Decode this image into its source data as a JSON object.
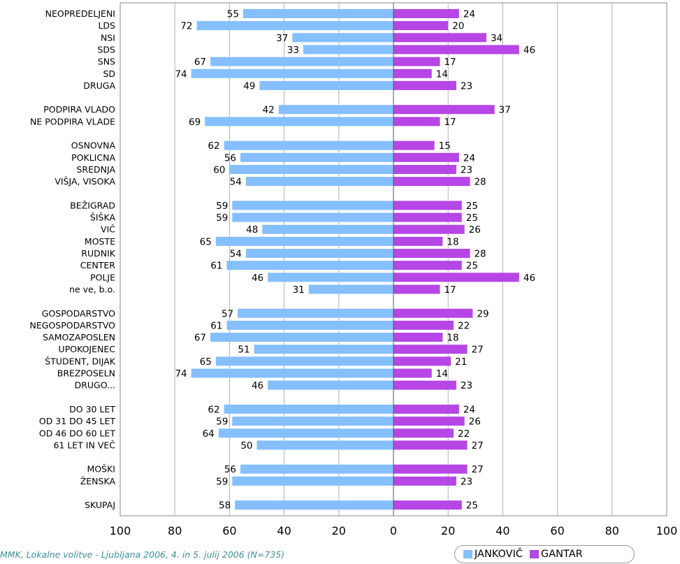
{
  "chart_data": {
    "type": "bar",
    "orientation": "horizontal-butterfly",
    "series": [
      {
        "name": "JANKOVIČ",
        "color": "#85bfff",
        "direction": "left"
      },
      {
        "name": "GANTAR",
        "color": "#b646e6",
        "direction": "right"
      }
    ],
    "groups": [
      {
        "rows": [
          {
            "label": "NEOPREDELJENI",
            "values": [
              55,
              24
            ]
          },
          {
            "label": "LDS",
            "values": [
              72,
              20
            ]
          },
          {
            "label": "NSI",
            "values": [
              37,
              34
            ]
          },
          {
            "label": "SDS",
            "values": [
              33,
              46
            ]
          },
          {
            "label": "SNS",
            "values": [
              67,
              17
            ]
          },
          {
            "label": "SD",
            "values": [
              74,
              14
            ]
          },
          {
            "label": "DRUGA",
            "values": [
              49,
              23
            ]
          }
        ]
      },
      {
        "rows": [
          {
            "label": "PODPIRA VLADO",
            "values": [
              42,
              37
            ]
          },
          {
            "label": "NE PODPIRA VLADE",
            "values": [
              69,
              17
            ]
          }
        ]
      },
      {
        "rows": [
          {
            "label": "OSNOVNA",
            "values": [
              62,
              15
            ]
          },
          {
            "label": "POKLICNA",
            "values": [
              56,
              24
            ]
          },
          {
            "label": "SREDNJA",
            "values": [
              60,
              23
            ]
          },
          {
            "label": "VIŠJA, VISOKA",
            "values": [
              54,
              28
            ]
          }
        ]
      },
      {
        "rows": [
          {
            "label": "BEŽIGRAD",
            "values": [
              59,
              25
            ]
          },
          {
            "label": "ŠIŠKA",
            "values": [
              59,
              25
            ]
          },
          {
            "label": "VIČ",
            "values": [
              48,
              26
            ]
          },
          {
            "label": "MOSTE",
            "values": [
              65,
              18
            ]
          },
          {
            "label": "RUDNIK",
            "values": [
              54,
              28
            ]
          },
          {
            "label": "CENTER",
            "values": [
              61,
              25
            ]
          },
          {
            "label": "POLJE",
            "values": [
              46,
              46
            ]
          },
          {
            "label": "ne ve, b.o.",
            "values": [
              31,
              17
            ]
          }
        ]
      },
      {
        "rows": [
          {
            "label": "GOSPODARSTVO",
            "values": [
              57,
              29
            ]
          },
          {
            "label": "NEGOSPODARSTVO",
            "values": [
              61,
              22
            ]
          },
          {
            "label": "SAMOZAPOSLEN",
            "values": [
              67,
              18
            ]
          },
          {
            "label": "UPOKOJENEC",
            "values": [
              51,
              27
            ]
          },
          {
            "label": "ŠTUDENT, DIJAK",
            "values": [
              65,
              21
            ]
          },
          {
            "label": "BREZPOSELN",
            "values": [
              74,
              14
            ]
          },
          {
            "label": "DRUGO...",
            "values": [
              46,
              23
            ]
          }
        ]
      },
      {
        "rows": [
          {
            "label": "DO 30 LET",
            "values": [
              62,
              24
            ]
          },
          {
            "label": "OD 31 DO 45 LET",
            "values": [
              59,
              26
            ]
          },
          {
            "label": "OD 46 DO 60 LET",
            "values": [
              64,
              22
            ]
          },
          {
            "label": "61 LET IN VEČ",
            "values": [
              50,
              27
            ]
          }
        ]
      },
      {
        "rows": [
          {
            "label": "MOŠKI",
            "values": [
              56,
              27
            ]
          },
          {
            "label": "ŽENSKA",
            "values": [
              59,
              23
            ]
          }
        ]
      },
      {
        "rows": [
          {
            "label": "SKUPAJ",
            "values": [
              58,
              25
            ]
          }
        ]
      }
    ],
    "x_ticks": [
      "100",
      "80",
      "60",
      "40",
      "20",
      "0",
      "20",
      "40",
      "60",
      "80",
      "100"
    ],
    "xlim": [
      -100,
      100
    ],
    "grid": "vertical",
    "legend_position": "bottom-right"
  },
  "source_note": "MMK, Lokalne volitve - Ljubljana 2006, 4. in 5. julij 2006 (N=735)"
}
